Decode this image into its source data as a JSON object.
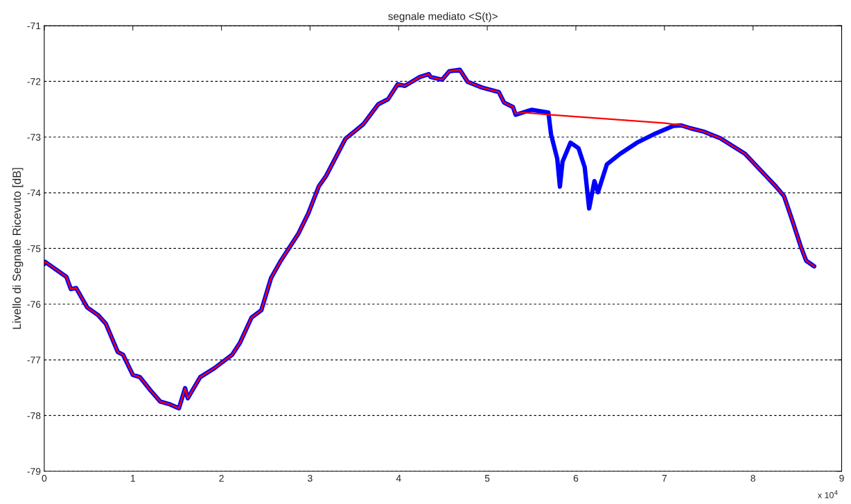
{
  "chart_data": {
    "type": "line",
    "title": "segnale mediato <S(t)>",
    "ylabel": "Livello di Segnale Ricevuto [dB]",
    "series": [
      {
        "color": "#0000ff",
        "x": [
          0,
          0.01,
          0.25,
          0.3,
          0.36,
          0.485,
          0.61,
          0.695,
          0.83,
          0.89,
          1.0,
          1.08,
          1.2,
          1.31,
          1.42,
          1.52,
          1.59,
          1.62,
          1.76,
          1.92,
          2.12,
          2.21,
          2.34,
          2.45,
          2.56,
          2.67,
          2.87,
          2.98,
          3.1,
          3.18,
          3.4,
          3.6,
          3.77,
          3.88,
          3.99,
          4.07,
          4.24,
          4.34,
          4.36,
          4.49,
          4.57,
          4.69,
          4.78,
          4.94,
          5.13,
          5.19,
          5.29,
          5.32,
          5.5,
          5.69,
          5.72,
          5.79,
          5.82,
          5.85,
          5.94,
          6.03,
          6.1,
          6.15,
          6.21,
          6.25,
          6.35,
          6.5,
          6.69,
          6.88,
          7.1,
          7.19,
          7.29,
          7.44,
          7.63,
          7.91,
          8.1,
          8.26,
          8.35,
          8.44,
          8.54,
          8.6,
          8.69
        ],
        "values": [
          -75.28,
          -75.24,
          -75.51,
          -75.73,
          -75.71,
          -76.06,
          -76.2,
          -76.35,
          -76.86,
          -76.91,
          -77.27,
          -77.31,
          -77.55,
          -77.75,
          -77.8,
          -77.87,
          -77.51,
          -77.69,
          -77.31,
          -77.15,
          -76.91,
          -76.69,
          -76.24,
          -76.11,
          -75.53,
          -75.22,
          -74.73,
          -74.37,
          -73.88,
          -73.7,
          -73.03,
          -72.77,
          -72.41,
          -72.32,
          -72.05,
          -72.08,
          -71.92,
          -71.87,
          -71.92,
          -71.97,
          -71.82,
          -71.79,
          -72.01,
          -72.11,
          -72.19,
          -72.38,
          -72.46,
          -72.6,
          -72.51,
          -72.56,
          -72.95,
          -73.39,
          -73.89,
          -73.44,
          -73.1,
          -73.2,
          -73.54,
          -74.28,
          -73.79,
          -73.99,
          -73.49,
          -73.3,
          -73.1,
          -72.95,
          -72.8,
          -72.79,
          -72.84,
          -72.9,
          -73.02,
          -73.3,
          -73.62,
          -73.89,
          -74.06,
          -74.48,
          -74.97,
          -75.22,
          -75.32
        ]
      },
      {
        "color": "#ff0000",
        "x": [
          0,
          0.01,
          0.25,
          0.3,
          0.36,
          0.485,
          0.61,
          0.695,
          0.83,
          0.89,
          1.0,
          1.08,
          1.2,
          1.31,
          1.42,
          1.52,
          1.59,
          1.62,
          1.76,
          1.92,
          2.12,
          2.21,
          2.34,
          2.45,
          2.56,
          2.67,
          2.87,
          2.98,
          3.1,
          3.18,
          3.4,
          3.6,
          3.77,
          3.88,
          3.99,
          4.07,
          4.24,
          4.34,
          4.36,
          4.49,
          4.57,
          4.69,
          4.78,
          4.94,
          5.13,
          5.19,
          5.29,
          5.32,
          5.41,
          5.72,
          7.01,
          7.19,
          7.29,
          7.44,
          7.63,
          7.91,
          8.1,
          8.26,
          8.35,
          8.44,
          8.54,
          8.6,
          8.69
        ],
        "values": [
          -75.28,
          -75.24,
          -75.51,
          -75.73,
          -75.71,
          -76.06,
          -76.2,
          -76.35,
          -76.86,
          -76.91,
          -77.27,
          -77.31,
          -77.55,
          -77.75,
          -77.8,
          -77.87,
          -77.51,
          -77.69,
          -77.31,
          -77.15,
          -76.91,
          -76.69,
          -76.24,
          -76.11,
          -75.53,
          -75.22,
          -74.73,
          -74.37,
          -73.88,
          -73.7,
          -73.03,
          -72.77,
          -72.41,
          -72.32,
          -72.05,
          -72.08,
          -71.92,
          -71.87,
          -71.92,
          -71.97,
          -71.82,
          -71.79,
          -72.01,
          -72.11,
          -72.19,
          -72.38,
          -72.46,
          -72.58,
          -72.56,
          -72.6,
          -72.75,
          -72.79,
          -72.84,
          -72.9,
          -73.02,
          -73.3,
          -73.62,
          -73.89,
          -74.06,
          -74.48,
          -74.97,
          -75.22,
          -75.32
        ]
      }
    ],
    "xlim": [
      0,
      9
    ],
    "xticks": [
      0,
      1,
      2,
      3,
      4,
      5,
      6,
      7,
      8,
      9
    ],
    "ylim": [
      -79,
      -71
    ],
    "yticks": [
      -79,
      -78,
      -77,
      -76,
      -75,
      -74,
      -73,
      -72,
      -71
    ],
    "grid": "y",
    "line_style": "solid",
    "annotations": [
      "x 10$^{4}$"
    ]
  }
}
